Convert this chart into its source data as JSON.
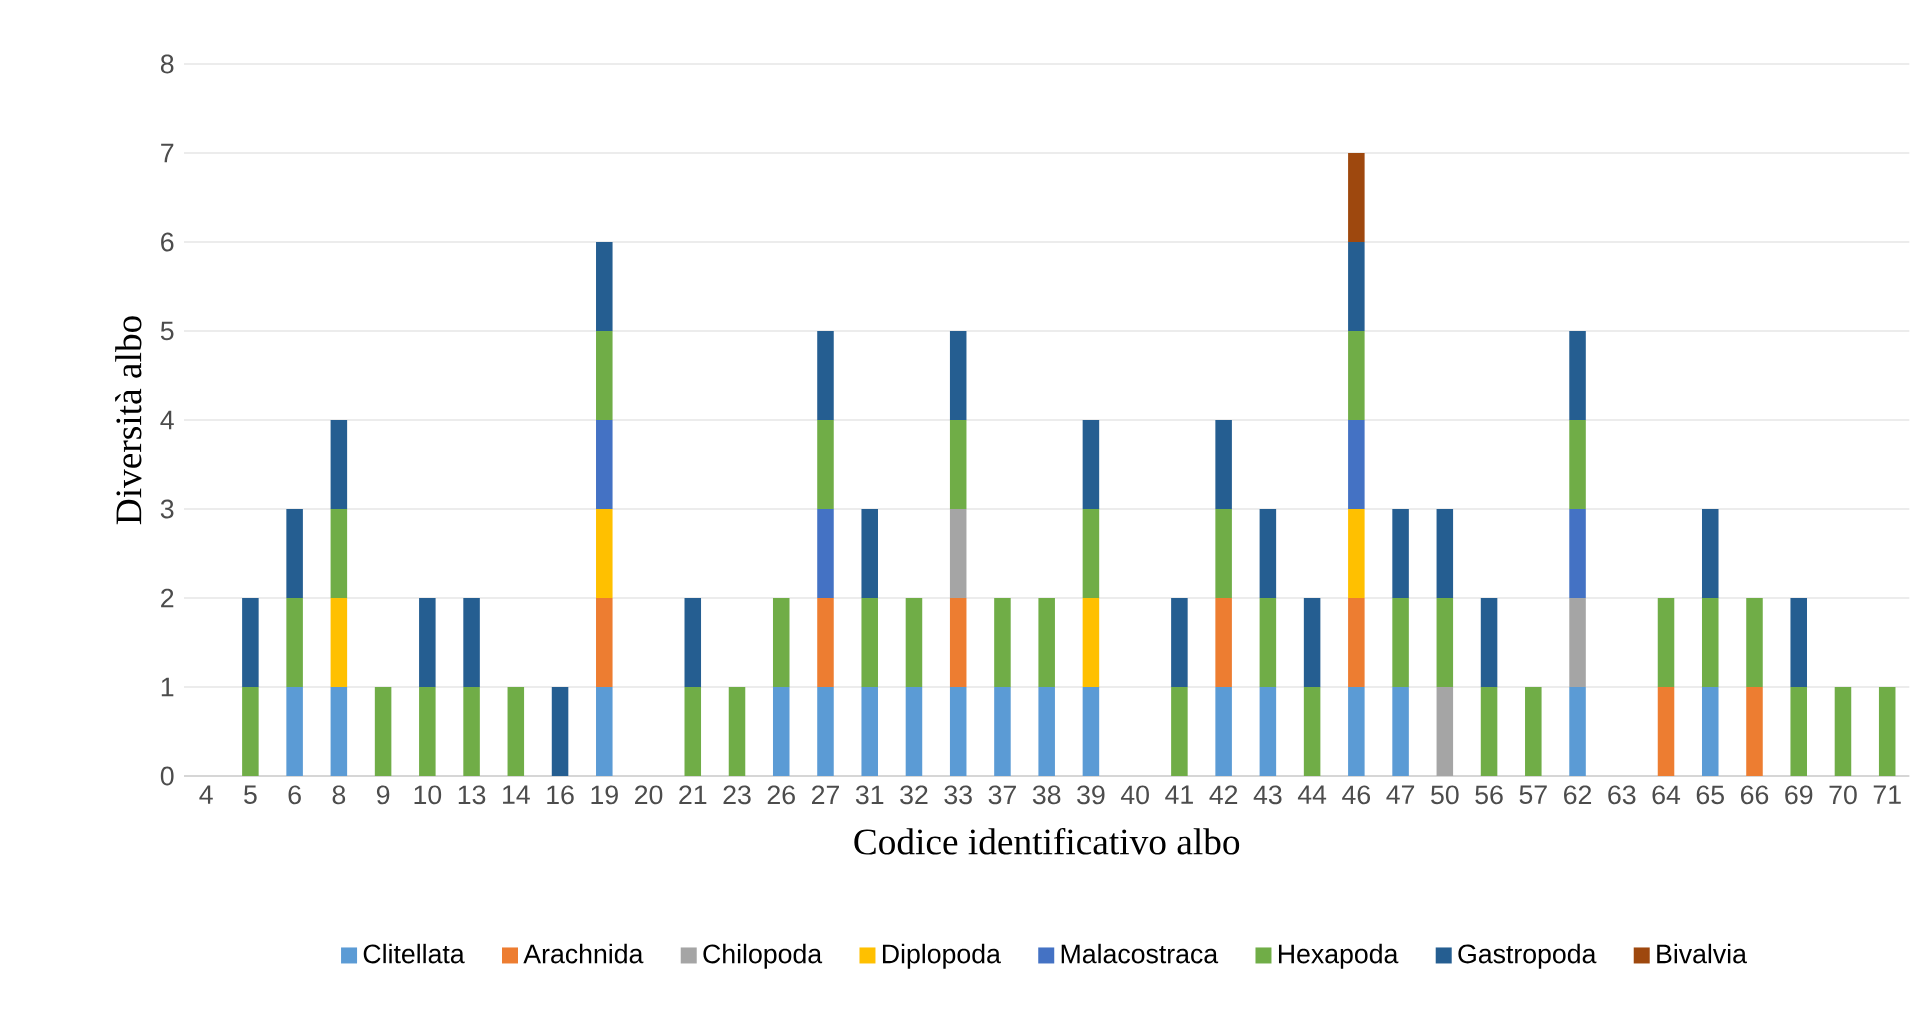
{
  "chart_data": {
    "type": "bar",
    "stacked": true,
    "xlabel": "Codice identificativo albo",
    "ylabel": "Diversità albo",
    "categories": [
      "4",
      "5",
      "6",
      "8",
      "9",
      "10",
      "13",
      "14",
      "16",
      "19",
      "20",
      "21",
      "23",
      "26",
      "27",
      "31",
      "32",
      "33",
      "37",
      "38",
      "39",
      "40",
      "41",
      "42",
      "43",
      "44",
      "46",
      "47",
      "50",
      "56",
      "57",
      "62",
      "63",
      "64",
      "65",
      "66",
      "69",
      "70",
      "71"
    ],
    "series": [
      {
        "name": "Clitellata",
        "color": "#5b9bd5",
        "values": [
          0,
          0,
          1,
          1,
          0,
          0,
          0,
          0,
          0,
          1,
          0,
          0,
          0,
          1,
          1,
          1,
          1,
          1,
          1,
          1,
          1,
          0,
          0,
          1,
          1,
          0,
          1,
          1,
          0,
          0,
          0,
          1,
          0,
          0,
          1,
          0,
          0,
          0,
          0
        ]
      },
      {
        "name": "Arachnida",
        "color": "#ed7d31",
        "values": [
          0,
          0,
          0,
          0,
          0,
          0,
          0,
          0,
          0,
          1,
          0,
          0,
          0,
          0,
          1,
          0,
          0,
          1,
          0,
          0,
          0,
          0,
          0,
          1,
          0,
          0,
          1,
          0,
          0,
          0,
          0,
          0,
          0,
          1,
          0,
          1,
          0,
          0,
          0
        ]
      },
      {
        "name": "Chilopoda",
        "color": "#a5a5a5",
        "values": [
          0,
          0,
          0,
          0,
          0,
          0,
          0,
          0,
          0,
          0,
          0,
          0,
          0,
          0,
          0,
          0,
          0,
          1,
          0,
          0,
          0,
          0,
          0,
          0,
          0,
          0,
          0,
          0,
          1,
          0,
          0,
          1,
          0,
          0,
          0,
          0,
          0,
          0,
          0
        ]
      },
      {
        "name": "Diplopoda",
        "color": "#ffc000",
        "values": [
          0,
          0,
          0,
          1,
          0,
          0,
          0,
          0,
          0,
          1,
          0,
          0,
          0,
          0,
          0,
          0,
          0,
          0,
          0,
          0,
          1,
          0,
          0,
          0,
          0,
          0,
          1,
          0,
          0,
          0,
          0,
          0,
          0,
          0,
          0,
          0,
          0,
          0,
          0
        ]
      },
      {
        "name": "Malacostraca",
        "color": "#4472c4",
        "values": [
          0,
          0,
          0,
          0,
          0,
          0,
          0,
          0,
          0,
          1,
          0,
          0,
          0,
          0,
          1,
          0,
          0,
          0,
          0,
          0,
          0,
          0,
          0,
          0,
          0,
          0,
          1,
          0,
          0,
          0,
          0,
          1,
          0,
          0,
          0,
          0,
          0,
          0,
          0
        ]
      },
      {
        "name": "Hexapoda",
        "color": "#70ad47",
        "values": [
          0,
          1,
          1,
          1,
          1,
          1,
          1,
          1,
          0,
          1,
          0,
          1,
          1,
          1,
          1,
          1,
          1,
          1,
          1,
          1,
          1,
          0,
          1,
          1,
          1,
          1,
          1,
          1,
          1,
          1,
          1,
          1,
          0,
          1,
          1,
          1,
          1,
          1,
          1
        ]
      },
      {
        "name": "Gastropoda",
        "color": "#255e91",
        "values": [
          0,
          1,
          1,
          1,
          0,
          1,
          1,
          0,
          1,
          1,
          0,
          1,
          0,
          0,
          1,
          1,
          0,
          1,
          0,
          0,
          1,
          0,
          1,
          1,
          1,
          1,
          1,
          1,
          1,
          1,
          0,
          1,
          0,
          0,
          1,
          0,
          1,
          0,
          0
        ]
      },
      {
        "name": "Bivalvia",
        "color": "#9e480e",
        "values": [
          0,
          0,
          0,
          0,
          0,
          0,
          0,
          0,
          0,
          0,
          0,
          0,
          0,
          0,
          0,
          0,
          0,
          0,
          0,
          0,
          0,
          0,
          0,
          0,
          0,
          0,
          1,
          0,
          0,
          0,
          0,
          0,
          0,
          0,
          0,
          0,
          0,
          0,
          0
        ]
      }
    ],
    "ylim": [
      0,
      8
    ],
    "yticks": [
      0,
      1,
      2,
      3,
      4,
      5,
      6,
      7,
      8
    ],
    "grid": "y",
    "legend": "bottom"
  }
}
